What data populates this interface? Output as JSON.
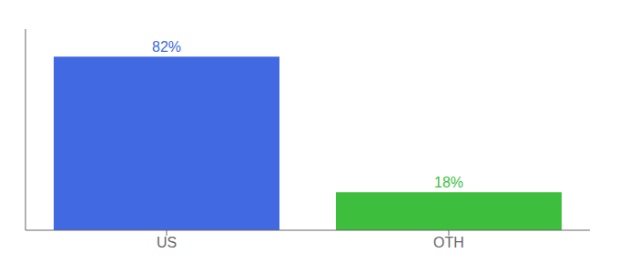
{
  "chart_data": {
    "type": "bar",
    "categories": [
      "US",
      "OTH"
    ],
    "values": [
      82,
      18
    ],
    "value_labels": [
      "82%",
      "18%"
    ],
    "colors": [
      "#4169E1",
      "#3DBF3D"
    ],
    "ylim": [
      0,
      95
    ],
    "data_labels": true,
    "tick_labels": "x"
  }
}
